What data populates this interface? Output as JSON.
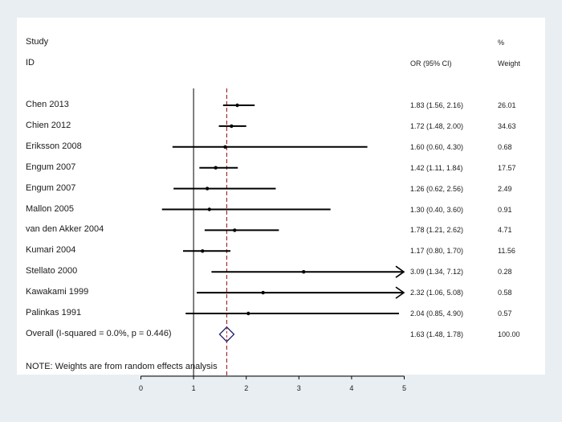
{
  "header": {
    "study": "Study",
    "id": "ID",
    "or_ci": "OR (95% CI)",
    "pct": "%",
    "weight": "Weight"
  },
  "chart_data": {
    "type": "forest",
    "xaxis": {
      "ticks": [
        "0",
        "1",
        "2",
        "3",
        "4",
        "5"
      ],
      "tick_values": [
        0,
        1,
        2,
        3,
        4,
        5
      ],
      "range": [
        0,
        5
      ]
    },
    "null_line": 1,
    "summary_line": 1.63,
    "studies": [
      {
        "label": "Chen 2013",
        "or": 1.83,
        "lo": 1.56,
        "hi": 2.16,
        "ci_text": "1.83 (1.56, 2.16)",
        "weight": "26.01"
      },
      {
        "label": "Chien 2012",
        "or": 1.72,
        "lo": 1.48,
        "hi": 2.0,
        "ci_text": "1.72 (1.48, 2.00)",
        "weight": "34.63"
      },
      {
        "label": "Eriksson 2008",
        "or": 1.6,
        "lo": 0.6,
        "hi": 4.3,
        "ci_text": "1.60 (0.60, 4.30)",
        "weight": "0.68"
      },
      {
        "label": "Engum 2007",
        "or": 1.42,
        "lo": 1.11,
        "hi": 1.84,
        "ci_text": "1.42 (1.11, 1.84)",
        "weight": "17.57"
      },
      {
        "label": "Engum 2007",
        "or": 1.26,
        "lo": 0.62,
        "hi": 2.56,
        "ci_text": "1.26 (0.62, 2.56)",
        "weight": "2.49"
      },
      {
        "label": "Mallon 2005",
        "or": 1.3,
        "lo": 0.4,
        "hi": 3.6,
        "ci_text": "1.30 (0.40, 3.60)",
        "weight": "0.91"
      },
      {
        "label": "van den Akker 2004",
        "or": 1.78,
        "lo": 1.21,
        "hi": 2.62,
        "ci_text": "1.78 (1.21, 2.62)",
        "weight": "4.71"
      },
      {
        "label": "Kumari 2004",
        "or": 1.17,
        "lo": 0.8,
        "hi": 1.7,
        "ci_text": "1.17 (0.80, 1.70)",
        "weight": "11.56"
      },
      {
        "label": "Stellato 2000",
        "or": 3.09,
        "lo": 1.34,
        "hi": 7.12,
        "ci_text": "3.09 (1.34, 7.12)",
        "weight": "0.28",
        "arrow_right": true
      },
      {
        "label": "Kawakami 1999",
        "or": 2.32,
        "lo": 1.06,
        "hi": 5.08,
        "ci_text": "2.32 (1.06, 5.08)",
        "weight": "0.58",
        "arrow_right": true
      },
      {
        "label": "Palinkas 1991",
        "or": 2.04,
        "lo": 0.85,
        "hi": 4.9,
        "ci_text": "2.04 (0.85, 4.90)",
        "weight": "0.57"
      }
    ],
    "overall": {
      "label": "Overall  (I-squared = 0.0%, p = 0.446)",
      "or": 1.63,
      "lo": 1.48,
      "hi": 1.78,
      "ci_text": "1.63 (1.48, 1.78)",
      "weight": "100.00"
    },
    "note": "NOTE: Weights are from random effects analysis"
  },
  "colors": {
    "background": "#e9eef3",
    "panel": "#ffffff",
    "ci_line": "#000000",
    "summary_line": "#a52a2a",
    "diamond": "#1a1a6e"
  }
}
